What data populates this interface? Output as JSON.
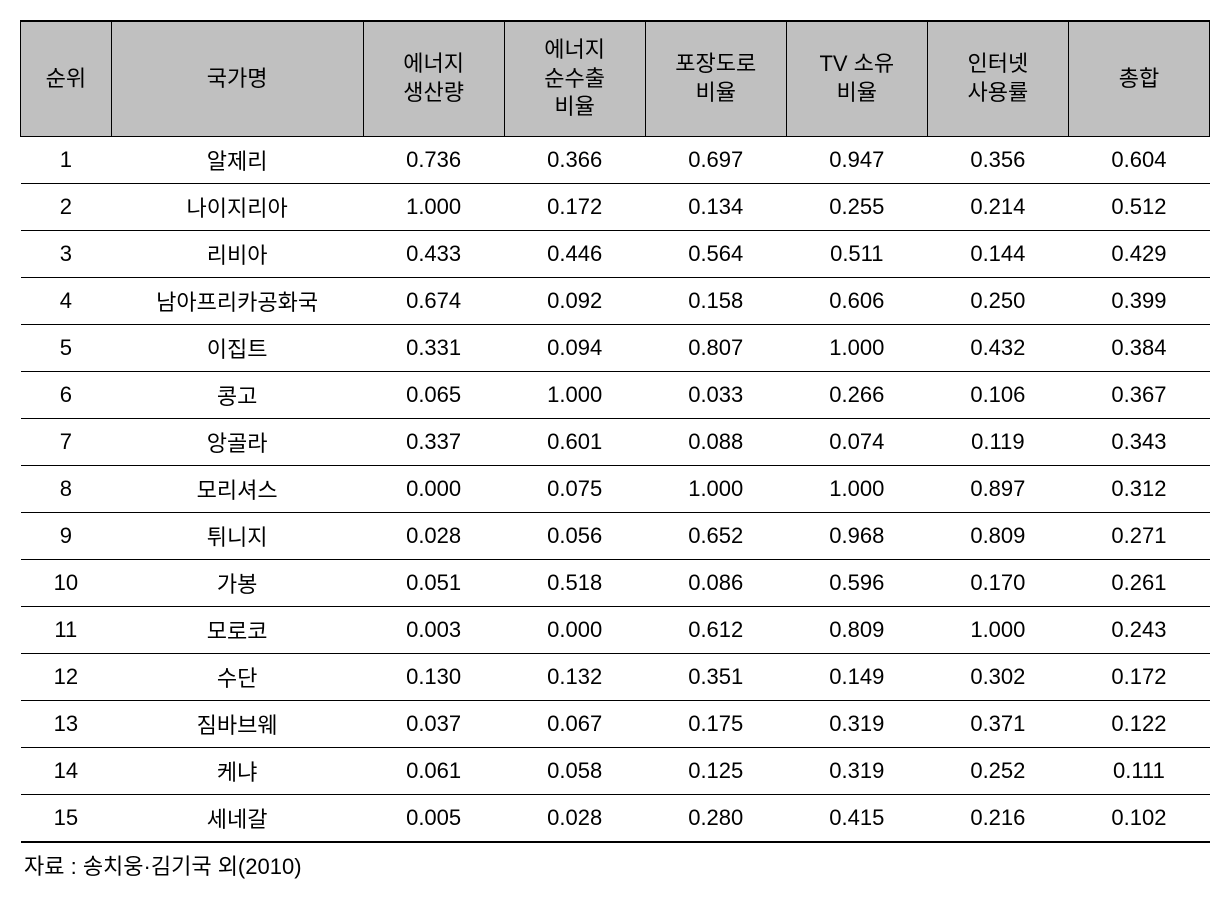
{
  "table": {
    "columns": [
      {
        "key": "rank",
        "label": "순위",
        "class": "col-rank"
      },
      {
        "key": "country",
        "label": "국가명",
        "class": "col-country"
      },
      {
        "key": "energy_prod",
        "label": "에너지\n생산량",
        "class": "col-val multiline"
      },
      {
        "key": "energy_export",
        "label": "에너지\n순수출\n비율",
        "class": "col-val multiline"
      },
      {
        "key": "road",
        "label": "포장도로\n비율",
        "class": "col-val multiline"
      },
      {
        "key": "tv",
        "label": "TV 소유\n비율",
        "class": "col-val multiline"
      },
      {
        "key": "internet",
        "label": "인터넷\n사용률",
        "class": "col-val multiline"
      },
      {
        "key": "total",
        "label": "총합",
        "class": "col-val"
      }
    ],
    "rows": [
      [
        "1",
        "알제리",
        "0.736",
        "0.366",
        "0.697",
        "0.947",
        "0.356",
        "0.604"
      ],
      [
        "2",
        "나이지리아",
        "1.000",
        "0.172",
        "0.134",
        "0.255",
        "0.214",
        "0.512"
      ],
      [
        "3",
        "리비아",
        "0.433",
        "0.446",
        "0.564",
        "0.511",
        "0.144",
        "0.429"
      ],
      [
        "4",
        "남아프리카공화국",
        "0.674",
        "0.092",
        "0.158",
        "0.606",
        "0.250",
        "0.399"
      ],
      [
        "5",
        "이집트",
        "0.331",
        "0.094",
        "0.807",
        "1.000",
        "0.432",
        "0.384"
      ],
      [
        "6",
        "콩고",
        "0.065",
        "1.000",
        "0.033",
        "0.266",
        "0.106",
        "0.367"
      ],
      [
        "7",
        "앙골라",
        "0.337",
        "0.601",
        "0.088",
        "0.074",
        "0.119",
        "0.343"
      ],
      [
        "8",
        "모리셔스",
        "0.000",
        "0.075",
        "1.000",
        "1.000",
        "0.897",
        "0.312"
      ],
      [
        "9",
        "튀니지",
        "0.028",
        "0.056",
        "0.652",
        "0.968",
        "0.809",
        "0.271"
      ],
      [
        "10",
        "가봉",
        "0.051",
        "0.518",
        "0.086",
        "0.596",
        "0.170",
        "0.261"
      ],
      [
        "11",
        "모로코",
        "0.003",
        "0.000",
        "0.612",
        "0.809",
        "1.000",
        "0.243"
      ],
      [
        "12",
        "수단",
        "0.130",
        "0.132",
        "0.351",
        "0.149",
        "0.302",
        "0.172"
      ],
      [
        "13",
        "짐바브웨",
        "0.037",
        "0.067",
        "0.175",
        "0.319",
        "0.371",
        "0.122"
      ],
      [
        "14",
        "케냐",
        "0.061",
        "0.058",
        "0.125",
        "0.319",
        "0.252",
        "0.111"
      ],
      [
        "15",
        "세네갈",
        "0.005",
        "0.028",
        "0.280",
        "0.415",
        "0.216",
        "0.102"
      ]
    ],
    "header_bg": "#c0c0c0",
    "border_color": "#000000",
    "font_size": 22
  },
  "source_text": "자료 : 송치웅·김기국 외(2010)"
}
